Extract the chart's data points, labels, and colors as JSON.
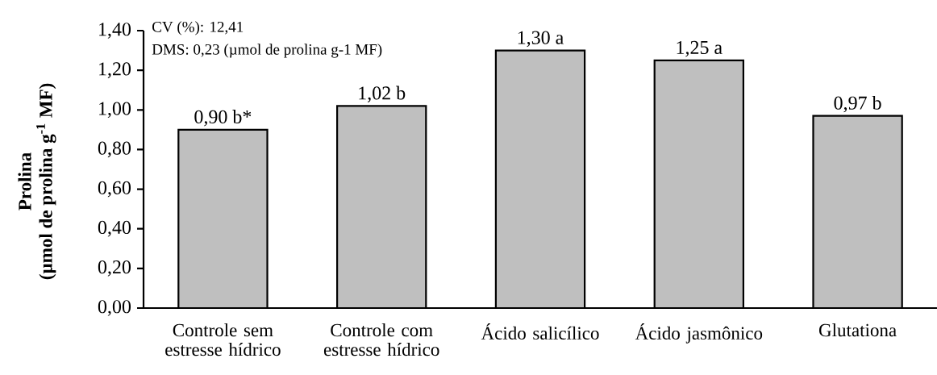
{
  "chart_data": {
    "type": "bar",
    "ylabel": "Prolina\n(µmol de prolina g$^{-1}$ MF)",
    "categories": [
      "Controle sem estresse hídrico",
      "Controle com estresse hídrico",
      "Ácido salicílico",
      "Ácido jasmônico",
      "Glutationa"
    ],
    "values": [
      0.9,
      1.02,
      1.3,
      1.25,
      0.97
    ],
    "value_labels": [
      "0,90 b*",
      "1,02 b",
      "1,30 a",
      "1,25 a",
      "0,97 b"
    ],
    "color": "#bfbfbf",
    "ylim": [
      0,
      1.4
    ],
    "yticks": [
      {
        "value": 0,
        "label": "0,00"
      },
      {
        "value": 0.2,
        "label": "0,20"
      },
      {
        "value": 0.4,
        "label": "0,40"
      },
      {
        "value": 0.6,
        "label": "0,60"
      },
      {
        "value": 0.8,
        "label": "0,80"
      },
      {
        "value": 1.0,
        "label": "1,00"
      },
      {
        "value": 1.2,
        "label": "1,20"
      },
      {
        "value": 1.4,
        "label": "1,40"
      }
    ],
    "annotations": [
      "CV (%): 12,41",
      "DMS: 0,23 (µmol de prolina g-1 MF)"
    ],
    "grid": false
  }
}
